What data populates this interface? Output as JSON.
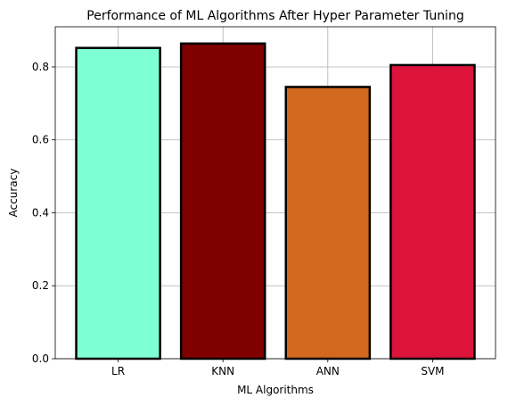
{
  "chart_data": {
    "type": "bar",
    "title": "Performance of ML Algorithms After Hyper Parameter Tuning",
    "xlabel": "ML Algorithms",
    "ylabel": "Accuracy",
    "categories": [
      "LR",
      "KNN",
      "ANN",
      "SVM"
    ],
    "values": [
      0.852,
      0.864,
      0.745,
      0.805
    ],
    "colors": [
      "#7fffd4",
      "#800000",
      "#d2691e",
      "#dc143c"
    ],
    "edge_color": "#000000",
    "ylim": [
      0,
      0.91
    ],
    "yticks": [
      0.0,
      0.2,
      0.4,
      0.6,
      0.8
    ],
    "ytick_labels": [
      "0.0",
      "0.2",
      "0.4",
      "0.6",
      "0.8"
    ],
    "grid": true,
    "grid_color": "#b0b0b0"
  }
}
